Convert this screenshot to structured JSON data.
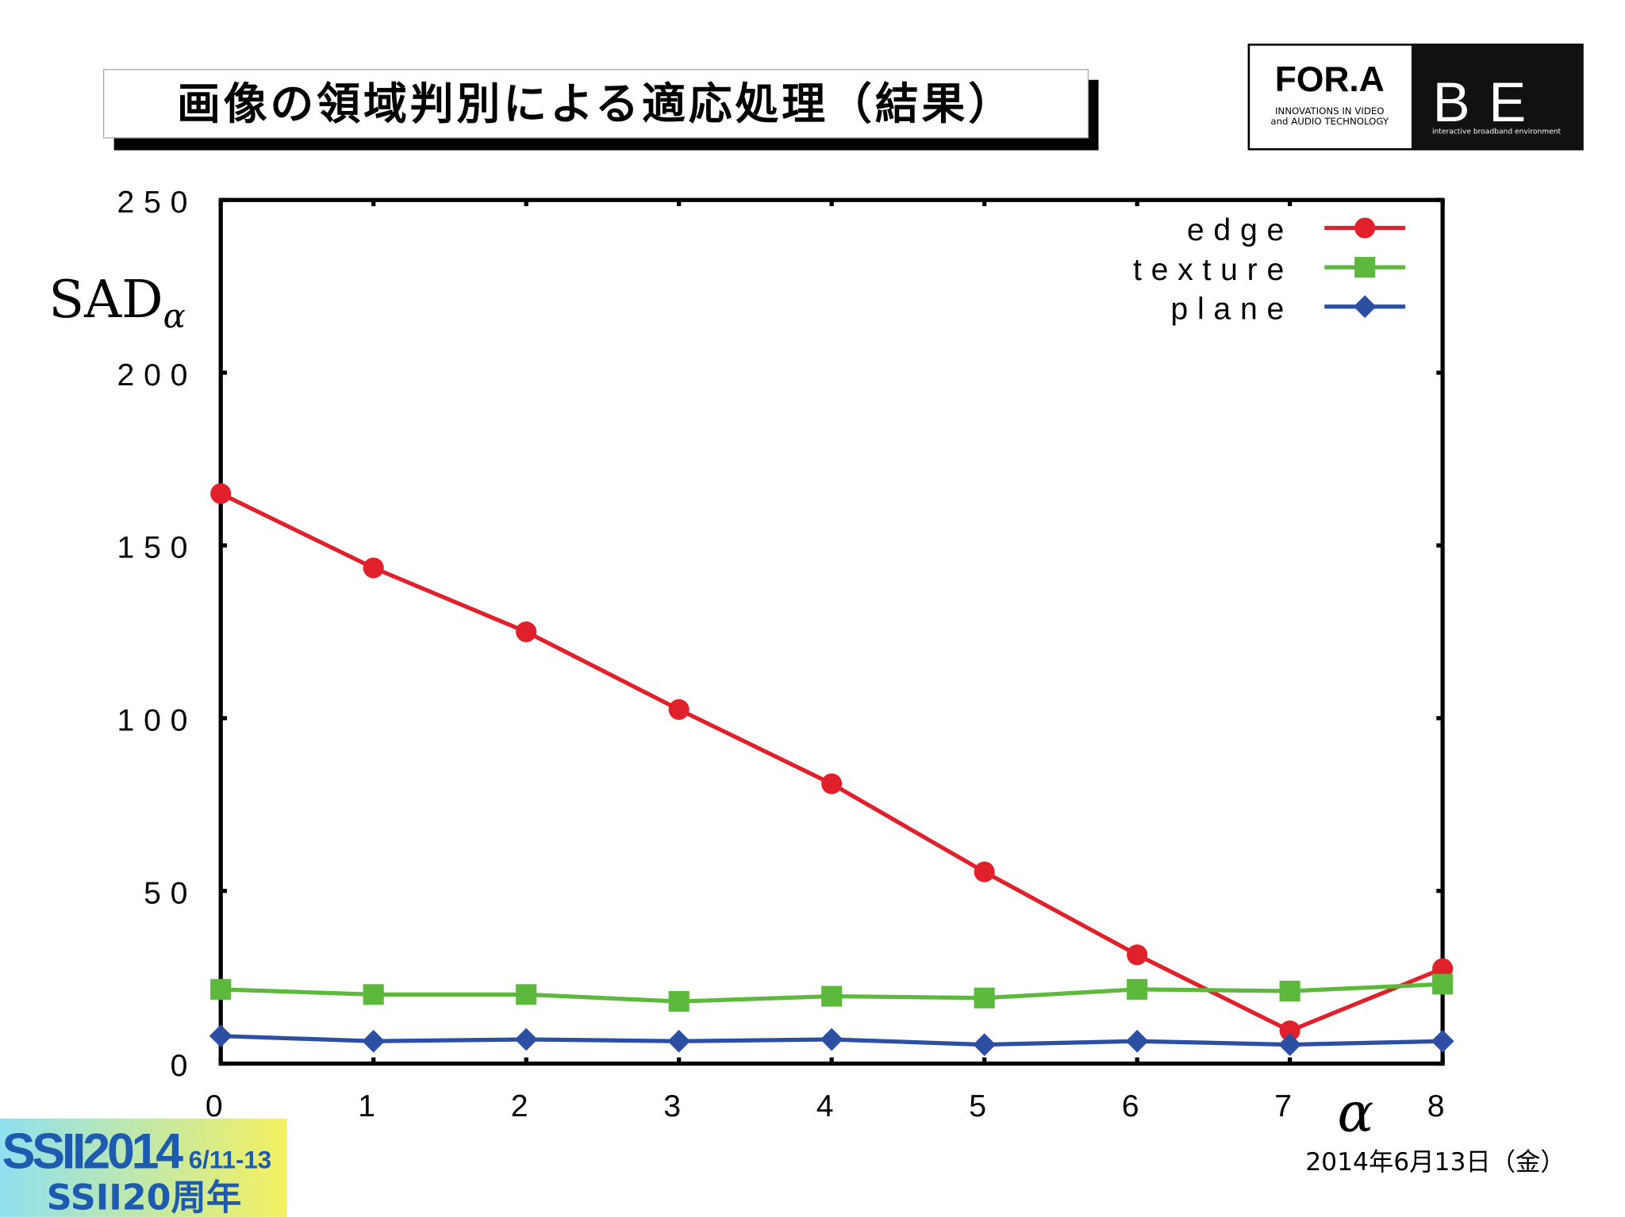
{
  "header": {
    "title": "画像の領域判別による適応処理（結果）",
    "logo_left": "FOR.A",
    "logo_left_sub1": "INNOVATIONS IN VIDEO",
    "logo_left_sub2": "and AUDIO TECHNOLOGY",
    "logo_right": "IBE",
    "logo_right_sub": "interactive broadband environment"
  },
  "footer": {
    "badge_main": "SSII2014",
    "badge_dates": "6/11-13",
    "badge_sub": "SSII20周年",
    "date": "2014年6月13日（金）"
  },
  "chart_data": {
    "type": "line",
    "ylabel": "SAD",
    "ylabel_sub": "α",
    "xlabel": "α",
    "x": [
      0,
      1,
      2,
      3,
      4,
      5,
      6,
      7,
      8
    ],
    "series": [
      {
        "name": "edge",
        "color": "#e0202a",
        "marker": "circle",
        "values": [
          165,
          143.5,
          125,
          102.5,
          81,
          55.5,
          31.5,
          9.5,
          27.5
        ]
      },
      {
        "name": "texture",
        "color": "#5cb93c",
        "marker": "square",
        "values": [
          21.5,
          20,
          20,
          18,
          19.5,
          19,
          21.5,
          21,
          23
        ]
      },
      {
        "name": "plane",
        "color": "#2c4fa3",
        "marker": "diamond",
        "values": [
          8,
          6.5,
          7,
          6.5,
          7,
          5.5,
          6.5,
          5.5,
          6.5
        ]
      }
    ],
    "xlim": [
      0,
      8
    ],
    "xticks": [
      0,
      1,
      2,
      3,
      4,
      5,
      6,
      7,
      8
    ],
    "ylim": [
      0,
      250
    ],
    "yticks": [
      0,
      50,
      100,
      150,
      200,
      250
    ],
    "grid": false,
    "legend": "upper right"
  }
}
